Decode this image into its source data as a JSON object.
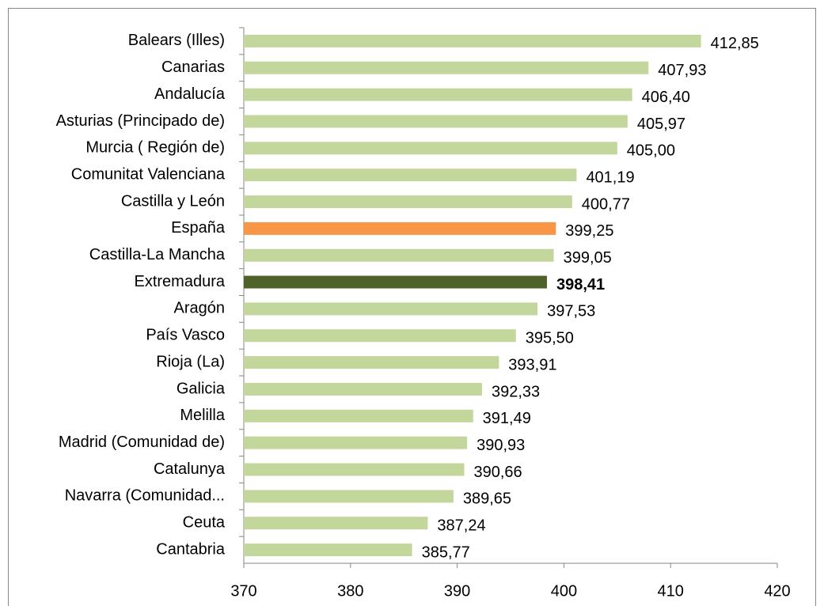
{
  "chart_data": {
    "type": "barh",
    "categories": [
      "Balears (Illes)",
      "Canarias",
      "Andalucía",
      "Asturias (Principado de)",
      "Murcia ( Región de)",
      "Comunitat Valenciana",
      "Castilla y León",
      "España",
      "Castilla-La Mancha",
      "Extremadura",
      "Aragón",
      "País Vasco",
      "Rioja (La)",
      "Galicia",
      "Melilla",
      "Madrid (Comunidad de)",
      "Catalunya",
      "Navarra (Comunidad...",
      "Ceuta",
      "Cantabria"
    ],
    "values": [
      412.85,
      407.93,
      406.4,
      405.97,
      405.0,
      401.19,
      400.77,
      399.25,
      399.05,
      398.41,
      397.53,
      395.5,
      393.91,
      392.33,
      391.49,
      390.93,
      390.66,
      389.65,
      387.24,
      385.77
    ],
    "value_labels": [
      "412,85",
      "407,93",
      "406,40",
      "405,97",
      "405,00",
      "401,19",
      "400,77",
      "399,25",
      "399,05",
      "398,41",
      "397,53",
      "395,50",
      "393,91",
      "392,33",
      "391,49",
      "390,93",
      "390,66",
      "389,65",
      "387,24",
      "385,77"
    ],
    "colors": [
      "#c3d69b",
      "#c3d69b",
      "#c3d69b",
      "#c3d69b",
      "#c3d69b",
      "#c3d69b",
      "#c3d69b",
      "#f79646",
      "#c3d69b",
      "#4f6228",
      "#c3d69b",
      "#c3d69b",
      "#c3d69b",
      "#c3d69b",
      "#c3d69b",
      "#c3d69b",
      "#c3d69b",
      "#c3d69b",
      "#c3d69b",
      "#c3d69b"
    ],
    "value_label_weights": [
      "normal",
      "normal",
      "normal",
      "normal",
      "normal",
      "normal",
      "normal",
      "normal",
      "normal",
      "bold",
      "normal",
      "normal",
      "normal",
      "normal",
      "normal",
      "normal",
      "normal",
      "normal",
      "normal",
      "normal"
    ],
    "xlim": [
      370,
      420
    ],
    "xticks": [
      370,
      380,
      390,
      400,
      410,
      420
    ]
  }
}
